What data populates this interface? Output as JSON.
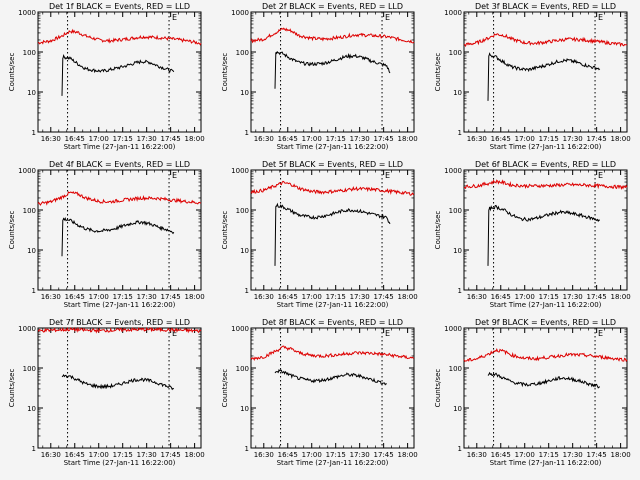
{
  "colors": {
    "background": "#f4f4f4",
    "events": "#000000",
    "lld": "#dd0000",
    "axis": "#000000"
  },
  "shared": {
    "xlabel": "Start Time (27-Jan-11 16:22:00)",
    "ylabel": "Counts/sec",
    "x_ticks": [
      "16:30",
      "16:45",
      "17:00",
      "17:15",
      "17:30",
      "17:45",
      "18:00"
    ],
    "y_ticks": [
      "1",
      "10",
      "100",
      "1000"
    ],
    "marker_label": "E"
  },
  "chart_data": [
    {
      "type": "line",
      "title": "Det 1f BLACK = Events, RED = LLD",
      "xlabel": "Start Time (27-Jan-11 16:22:00)",
      "ylabel": "Counts/sec",
      "x_unit": "minutes after 16:22",
      "xlim": [
        0,
        102
      ],
      "ylim": [
        1,
        1000
      ],
      "y_scale": "log",
      "marker_lines_x": [
        18.5,
        82
      ],
      "series": [
        {
          "name": "LLD",
          "color": "#dd0000",
          "x": [
            0,
            8,
            15,
            20,
            25,
            30,
            38,
            45,
            55,
            65,
            75,
            85,
            95,
            102
          ],
          "y": [
            170,
            190,
            250,
            330,
            310,
            250,
            200,
            190,
            210,
            240,
            230,
            210,
            185,
            165
          ]
        },
        {
          "name": "Events",
          "color": "#000000",
          "x": [
            15,
            15.5,
            16,
            20,
            25,
            30,
            35,
            40,
            45,
            50,
            55,
            60,
            65,
            70,
            75,
            80,
            85
          ],
          "y": [
            8,
            70,
            75,
            70,
            50,
            38,
            35,
            33,
            36,
            40,
            45,
            52,
            58,
            55,
            45,
            38,
            32
          ]
        }
      ]
    },
    {
      "type": "line",
      "title": "Det 2f BLACK = Events, RED = LLD",
      "xlabel": "Start Time (27-Jan-11 16:22:00)",
      "ylabel": "Counts/sec",
      "x_unit": "minutes after 16:22",
      "xlim": [
        0,
        102
      ],
      "ylim": [
        1,
        1000
      ],
      "y_scale": "log",
      "marker_lines_x": [
        18.5,
        82
      ],
      "series": [
        {
          "name": "LLD",
          "color": "#dd0000",
          "x": [
            0,
            8,
            15,
            20,
            25,
            30,
            38,
            45,
            55,
            65,
            75,
            85,
            95,
            102
          ],
          "y": [
            190,
            210,
            300,
            380,
            340,
            260,
            220,
            210,
            230,
            270,
            260,
            240,
            200,
            180
          ]
        },
        {
          "name": "Events",
          "color": "#000000",
          "x": [
            15,
            15.5,
            16,
            20,
            25,
            30,
            35,
            40,
            45,
            50,
            55,
            60,
            65,
            70,
            75,
            80,
            85,
            87
          ],
          "y": [
            12,
            95,
            100,
            90,
            68,
            55,
            50,
            50,
            52,
            58,
            68,
            78,
            80,
            72,
            60,
            52,
            45,
            30
          ]
        }
      ]
    },
    {
      "type": "line",
      "title": "Det 3f BLACK = Events, RED = LLD",
      "xlabel": "Start Time (27-Jan-11 16:22:00)",
      "ylabel": "Counts/sec",
      "x_unit": "minutes after 16:22",
      "xlim": [
        0,
        102
      ],
      "ylim": [
        1,
        1000
      ],
      "y_scale": "log",
      "marker_lines_x": [
        18.5,
        82
      ],
      "series": [
        {
          "name": "LLD",
          "color": "#dd0000",
          "x": [
            0,
            8,
            15,
            20,
            25,
            30,
            38,
            45,
            55,
            65,
            75,
            85,
            95,
            102
          ],
          "y": [
            150,
            170,
            220,
            280,
            260,
            210,
            170,
            165,
            185,
            210,
            200,
            180,
            160,
            150
          ]
        },
        {
          "name": "Events",
          "color": "#000000",
          "x": [
            15,
            15.5,
            16,
            20,
            25,
            30,
            35,
            40,
            45,
            50,
            55,
            60,
            65,
            70,
            75,
            80,
            85
          ],
          "y": [
            6,
            80,
            85,
            75,
            55,
            42,
            38,
            36,
            40,
            45,
            52,
            60,
            62,
            56,
            48,
            42,
            38
          ]
        }
      ]
    },
    {
      "type": "line",
      "title": "Det 4f BLACK = Events, RED = LLD",
      "xlabel": "Start Time (27-Jan-11 16:22:00)",
      "ylabel": "Counts/sec",
      "x_unit": "minutes after 16:22",
      "xlim": [
        0,
        102
      ],
      "ylim": [
        1,
        1000
      ],
      "y_scale": "log",
      "marker_lines_x": [
        18.5,
        82
      ],
      "series": [
        {
          "name": "LLD",
          "color": "#dd0000",
          "x": [
            0,
            8,
            15,
            20,
            25,
            30,
            38,
            45,
            55,
            65,
            75,
            85,
            95,
            102
          ],
          "y": [
            140,
            160,
            210,
            270,
            250,
            200,
            165,
            160,
            180,
            200,
            195,
            175,
            160,
            150
          ]
        },
        {
          "name": "Events",
          "color": "#000000",
          "x": [
            15,
            15.5,
            16,
            20,
            25,
            30,
            35,
            40,
            45,
            50,
            55,
            60,
            65,
            70,
            75,
            80,
            85
          ],
          "y": [
            7,
            55,
            60,
            55,
            42,
            34,
            30,
            30,
            32,
            36,
            42,
            48,
            50,
            45,
            38,
            33,
            28
          ]
        }
      ]
    },
    {
      "type": "line",
      "title": "Det 5f BLACK = Events, RED = LLD",
      "xlabel": "Start Time (27-Jan-11 16:22:00)",
      "ylabel": "Counts/sec",
      "x_unit": "minutes after 16:22",
      "xlim": [
        0,
        102
      ],
      "ylim": [
        1,
        1000
      ],
      "y_scale": "log",
      "marker_lines_x": [
        18.5,
        82
      ],
      "series": [
        {
          "name": "LLD",
          "color": "#dd0000",
          "x": [
            0,
            8,
            15,
            20,
            25,
            30,
            38,
            45,
            55,
            65,
            75,
            85,
            95,
            102
          ],
          "y": [
            280,
            310,
            400,
            480,
            440,
            350,
            290,
            280,
            300,
            340,
            330,
            300,
            270,
            250
          ]
        },
        {
          "name": "Events",
          "color": "#000000",
          "x": [
            15,
            15.5,
            16,
            20,
            25,
            30,
            35,
            40,
            45,
            50,
            55,
            60,
            65,
            70,
            75,
            80,
            85,
            87
          ],
          "y": [
            4,
            120,
            130,
            120,
            95,
            75,
            68,
            65,
            70,
            78,
            90,
            100,
            98,
            90,
            80,
            72,
            65,
            45
          ]
        }
      ]
    },
    {
      "type": "line",
      "title": "Det 6f BLACK = Events, RED = LLD",
      "xlabel": "Start Time (27-Jan-11 16:22:00)",
      "ylabel": "Counts/sec",
      "x_unit": "minutes after 16:22",
      "xlim": [
        0,
        102
      ],
      "ylim": [
        1,
        1000
      ],
      "y_scale": "log",
      "marker_lines_x": [
        18.5,
        82
      ],
      "series": [
        {
          "name": "LLD",
          "color": "#dd0000",
          "x": [
            0,
            8,
            15,
            20,
            25,
            30,
            38,
            45,
            55,
            65,
            75,
            85,
            95,
            102
          ],
          "y": [
            380,
            400,
            460,
            520,
            480,
            420,
            400,
            400,
            410,
            430,
            420,
            400,
            380,
            370
          ]
        },
        {
          "name": "Events",
          "color": "#000000",
          "x": [
            15,
            15.5,
            16,
            20,
            25,
            30,
            35,
            40,
            45,
            50,
            55,
            60,
            65,
            70,
            75,
            80,
            85
          ],
          "y": [
            4,
            100,
            110,
            120,
            100,
            75,
            60,
            58,
            62,
            70,
            80,
            88,
            85,
            78,
            70,
            62,
            55
          ]
        }
      ]
    },
    {
      "type": "line",
      "title": "Det 7f BLACK = Events, RED = LLD",
      "xlabel": "Start Time (27-Jan-11 16:22:00)",
      "ylabel": "Counts/sec",
      "x_unit": "minutes after 16:22",
      "xlim": [
        0,
        102
      ],
      "ylim": [
        1,
        1000
      ],
      "y_scale": "log",
      "marker_lines_x": [
        18.5,
        82
      ],
      "series": [
        {
          "name": "LLD",
          "color": "#dd0000",
          "x": [
            0,
            8,
            15,
            20,
            25,
            30,
            38,
            45,
            55,
            65,
            75,
            85,
            95,
            102
          ],
          "y": [
            850,
            880,
            900,
            920,
            900,
            880,
            860,
            870,
            900,
            920,
            910,
            890,
            860,
            840
          ]
        },
        {
          "name": "Events",
          "color": "#000000",
          "x": [
            15,
            16,
            20,
            25,
            30,
            35,
            40,
            45,
            50,
            55,
            60,
            65,
            70,
            75,
            80,
            85
          ],
          "y": [
            60,
            65,
            62,
            50,
            40,
            36,
            34,
            35,
            38,
            44,
            50,
            52,
            48,
            42,
            36,
            30
          ]
        }
      ]
    },
    {
      "type": "line",
      "title": "Det 8f BLACK = Events, RED = LLD",
      "xlabel": "Start Time (27-Jan-11 16:22:00)",
      "ylabel": "Counts/sec",
      "x_unit": "minutes after 16:22",
      "xlim": [
        0,
        102
      ],
      "ylim": [
        1,
        1000
      ],
      "y_scale": "log",
      "marker_lines_x": [
        18.5,
        82
      ],
      "series": [
        {
          "name": "LLD",
          "color": "#dd0000",
          "x": [
            0,
            8,
            15,
            20,
            25,
            30,
            38,
            45,
            55,
            65,
            75,
            85,
            95,
            102
          ],
          "y": [
            170,
            190,
            260,
            330,
            300,
            240,
            205,
            200,
            215,
            240,
            235,
            215,
            190,
            175
          ]
        },
        {
          "name": "Events",
          "color": "#000000",
          "x": [
            15,
            16,
            20,
            25,
            30,
            35,
            40,
            45,
            50,
            55,
            60,
            65,
            70,
            75,
            80,
            85
          ],
          "y": [
            75,
            85,
            80,
            65,
            55,
            50,
            48,
            50,
            55,
            62,
            68,
            66,
            60,
            52,
            45,
            40
          ]
        }
      ]
    },
    {
      "type": "line",
      "title": "Det 9f BLACK = Events, RED = LLD",
      "xlabel": "Start Time (27-Jan-11 16:22:00)",
      "ylabel": "Counts/sec",
      "x_unit": "minutes after 16:22",
      "xlim": [
        0,
        102
      ],
      "ylim": [
        1,
        1000
      ],
      "y_scale": "log",
      "marker_lines_x": [
        18.5,
        82
      ],
      "series": [
        {
          "name": "LLD",
          "color": "#dd0000",
          "x": [
            0,
            8,
            15,
            20,
            25,
            30,
            38,
            45,
            55,
            65,
            75,
            85,
            95,
            102
          ],
          "y": [
            150,
            170,
            220,
            280,
            260,
            210,
            175,
            170,
            190,
            215,
            210,
            190,
            170,
            160
          ]
        },
        {
          "name": "Events",
          "color": "#000000",
          "x": [
            15,
            16,
            20,
            25,
            30,
            35,
            40,
            45,
            50,
            55,
            60,
            65,
            70,
            75,
            80,
            85
          ],
          "y": [
            65,
            72,
            68,
            55,
            45,
            40,
            38,
            40,
            44,
            50,
            56,
            55,
            50,
            44,
            38,
            34
          ]
        }
      ]
    }
  ]
}
